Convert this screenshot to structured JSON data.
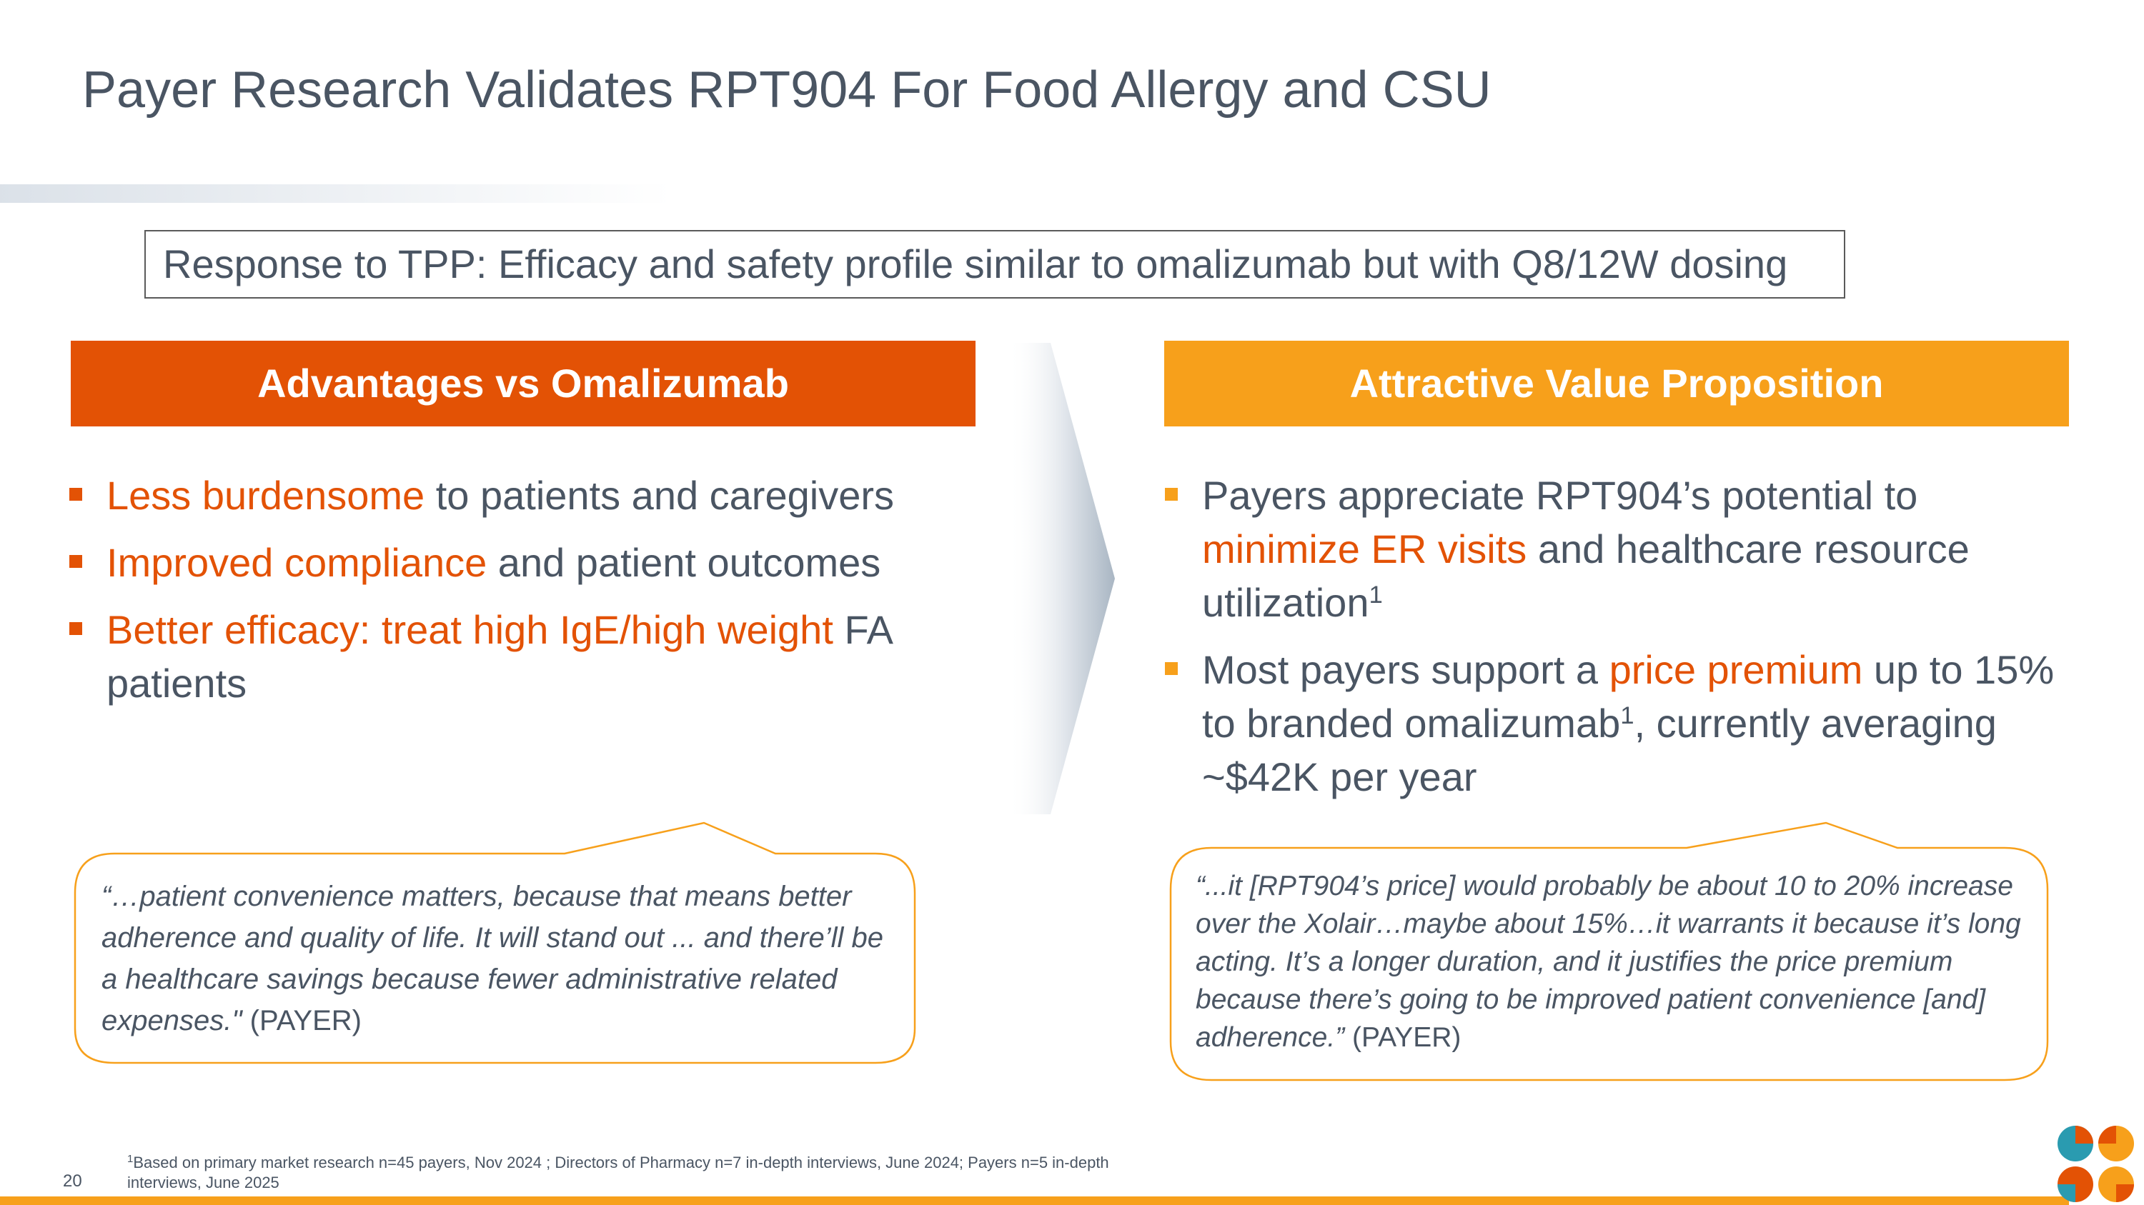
{
  "slide": {
    "title": "Payer Research Validates RPT904 For Food Allergy and CSU",
    "tpp": "Response to TPP: Efficacy and safety profile similar to omalizumab but with Q8/12W dosing",
    "page_number": "20"
  },
  "left": {
    "header": "Advantages vs Omalizumab",
    "bullets": [
      {
        "highlight": "Less burdensome",
        "text": " to patients and caregivers"
      },
      {
        "highlight": "Improved compliance",
        "text": " and patient outcomes"
      },
      {
        "highlight": "Better efficacy: treat high IgE/high weight",
        "text": " FA patients"
      }
    ],
    "quote": "“…patient convenience matters, because that means better adherence and quality of life. It will stand out ... and there’ll be a healthcare savings because fewer administrative related expenses.\"",
    "quote_source": " (PAYER)"
  },
  "right": {
    "header": "Attractive Value Proposition",
    "bullet1": {
      "pre": "Payers appreciate RPT904’s potential to ",
      "highlight": "minimize ER visits",
      "post": " and healthcare resource utilization",
      "sup": "1"
    },
    "bullet2": {
      "pre": "Most payers support a ",
      "highlight": "price premium",
      "mid": " up to 15% to branded omalizumab",
      "sup": "1",
      "post": ", currently averaging ~$42K per year"
    },
    "quote": "“...it [RPT904’s price] would probably be about 10 to 20% increase over the Xolair…maybe about 15%…it warrants it because it’s long acting. It’s a longer duration, and it justifies the price premium because there’s going to be improved patient convenience [and] adherence.”",
    "quote_source": " (PAYER)"
  },
  "footnote": {
    "sup": "1",
    "text": "Based on primary market research n=45 payers, Nov 2024 ; Directors of Pharmacy n=7 in-depth interviews, June 2024; Payers n=5 in-depth interviews, June 2025"
  },
  "colors": {
    "accent_red": "#e35205",
    "accent_orange": "#f7a01b",
    "text": "#4a5563",
    "logo_teal": "#2a9bb0"
  },
  "icons": [
    "square-bullet-icon",
    "chevron-arrow-icon",
    "company-logo-icon"
  ]
}
